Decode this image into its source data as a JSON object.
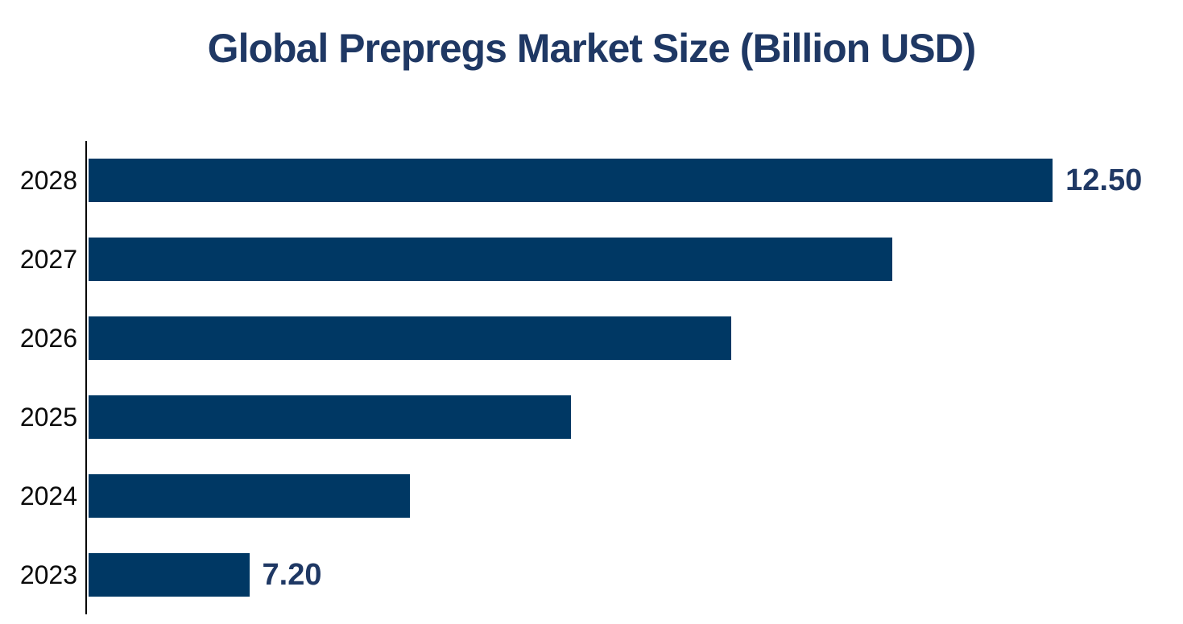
{
  "title": "Global Prepregs Market Size (Billion USD)",
  "colors": {
    "background": "#ffffff",
    "bar": "#003864",
    "title": "#1f3864",
    "data_label": "#1f3864",
    "year_label": "#0a0a0a",
    "axis": "#000000"
  },
  "chart_data": {
    "type": "bar",
    "orientation": "horizontal",
    "title": "Global Prepregs Market Size (Billion USD)",
    "categories": [
      "2028",
      "2027",
      "2026",
      "2025",
      "2024",
      "2023"
    ],
    "values": [
      12.5,
      11.44,
      10.38,
      9.32,
      8.26,
      7.2
    ],
    "data_labels": [
      "12.50",
      "",
      "",
      "",
      "",
      "7.20"
    ],
    "labeled_points": {
      "2028": 12.5,
      "2023": 7.2
    },
    "xlabel": "",
    "ylabel": "",
    "xlim": [
      6.14,
      13.36
    ],
    "grid": false,
    "legend": false
  }
}
